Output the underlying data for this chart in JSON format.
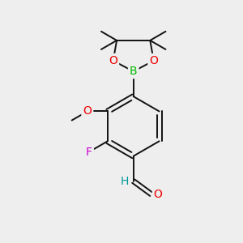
{
  "bg_color": "#eeeeee",
  "bond_color": "#111111",
  "bond_lw": 1.4,
  "atom_colors": {
    "O": "#ee0000",
    "B": "#00bb00",
    "F": "#cc00cc",
    "H": "#009999"
  },
  "font_size_atoms": 10,
  "font_size_methyl": 8.5
}
